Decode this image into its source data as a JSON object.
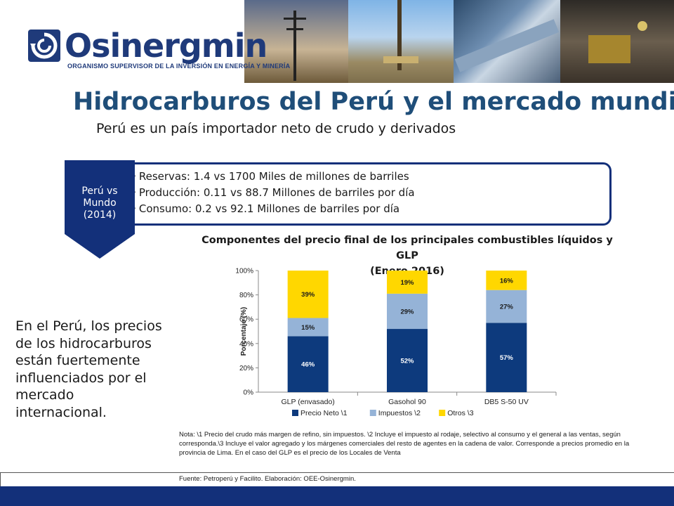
{
  "header": {
    "logo_name": "Osinergmin",
    "logo_subtitle": "ORGANISMO SUPERVISOR DE LA INVERSIÓN EN ENERGÍA Y MINERÍA",
    "photos": [
      "power-lines-photo",
      "oil-rig-photo",
      "pipeline-photo",
      "mine-photo"
    ]
  },
  "slide": {
    "title": "Hidrocarburos del Perú y el mercado mundial",
    "subtitle": "Perú es un país importador neto de crudo y derivados"
  },
  "comparison": {
    "label_line1": "Perú vs",
    "label_line2": "Mundo",
    "label_line3": "(2014)",
    "items": [
      "Reservas: 1.4 vs 1700 Miles de millones de barriles",
      "Producción: 0.11 vs 88.7 Millones de barriles por día",
      "Consumo: 0.2 vs 92.1 Millones de barriles por día"
    ]
  },
  "side_text": "En el Perú, los precios de los hidrocarburos están fuertemente influenciados por el mercado internacional.",
  "chart_data": {
    "type": "bar",
    "stacked": true,
    "title_line1": "Componentes del precio final de los principales combustibles líquidos y GLP",
    "title_line2": "(Enero 2016)",
    "ylabel": "Porcentaje (%)",
    "xlabel": "",
    "ylim": [
      0,
      100
    ],
    "yticks": [
      "0%",
      "20%",
      "40%",
      "60%",
      "80%",
      "100%"
    ],
    "categories": [
      "GLP (envasado)",
      "Gasohol 90",
      "DB5 S-50 UV"
    ],
    "series": [
      {
        "name": "Precio Neto \\1",
        "color": "#0d3a7d",
        "values": [
          46,
          52,
          57
        ],
        "labels": [
          "46%",
          "52%",
          "57%"
        ]
      },
      {
        "name": "Impuestos \\2",
        "color": "#95b3d7",
        "values": [
          15,
          29,
          27
        ],
        "labels": [
          "15%",
          "29%",
          "27%"
        ]
      },
      {
        "name": "Otros \\3",
        "color": "#ffd700",
        "values": [
          39,
          19,
          16
        ],
        "labels": [
          "39%",
          "19%",
          "16%"
        ]
      }
    ],
    "legend": "bottom"
  },
  "footer": {
    "note": "Nota: \\1 Precio del crudo más margen de refino, sin impuestos. \\2 Incluye el impuesto al rodaje, selectivo al consumo y el general a las ventas, según corresponda.\\3 Incluye el valor agregado y los márgenes comerciales del resto de agentes en la cadena de valor. Corresponde a precios promedio en la provincia de Lima. En el caso del GLP es el precio de los Locales de Venta",
    "source": "Fuente: Petroperú y Facilito. Elaboración: OEE-Osinergmin."
  },
  "colors": {
    "brand": "#1f3a7a",
    "title": "#1f4e79",
    "footer_bar": "#13307a"
  }
}
